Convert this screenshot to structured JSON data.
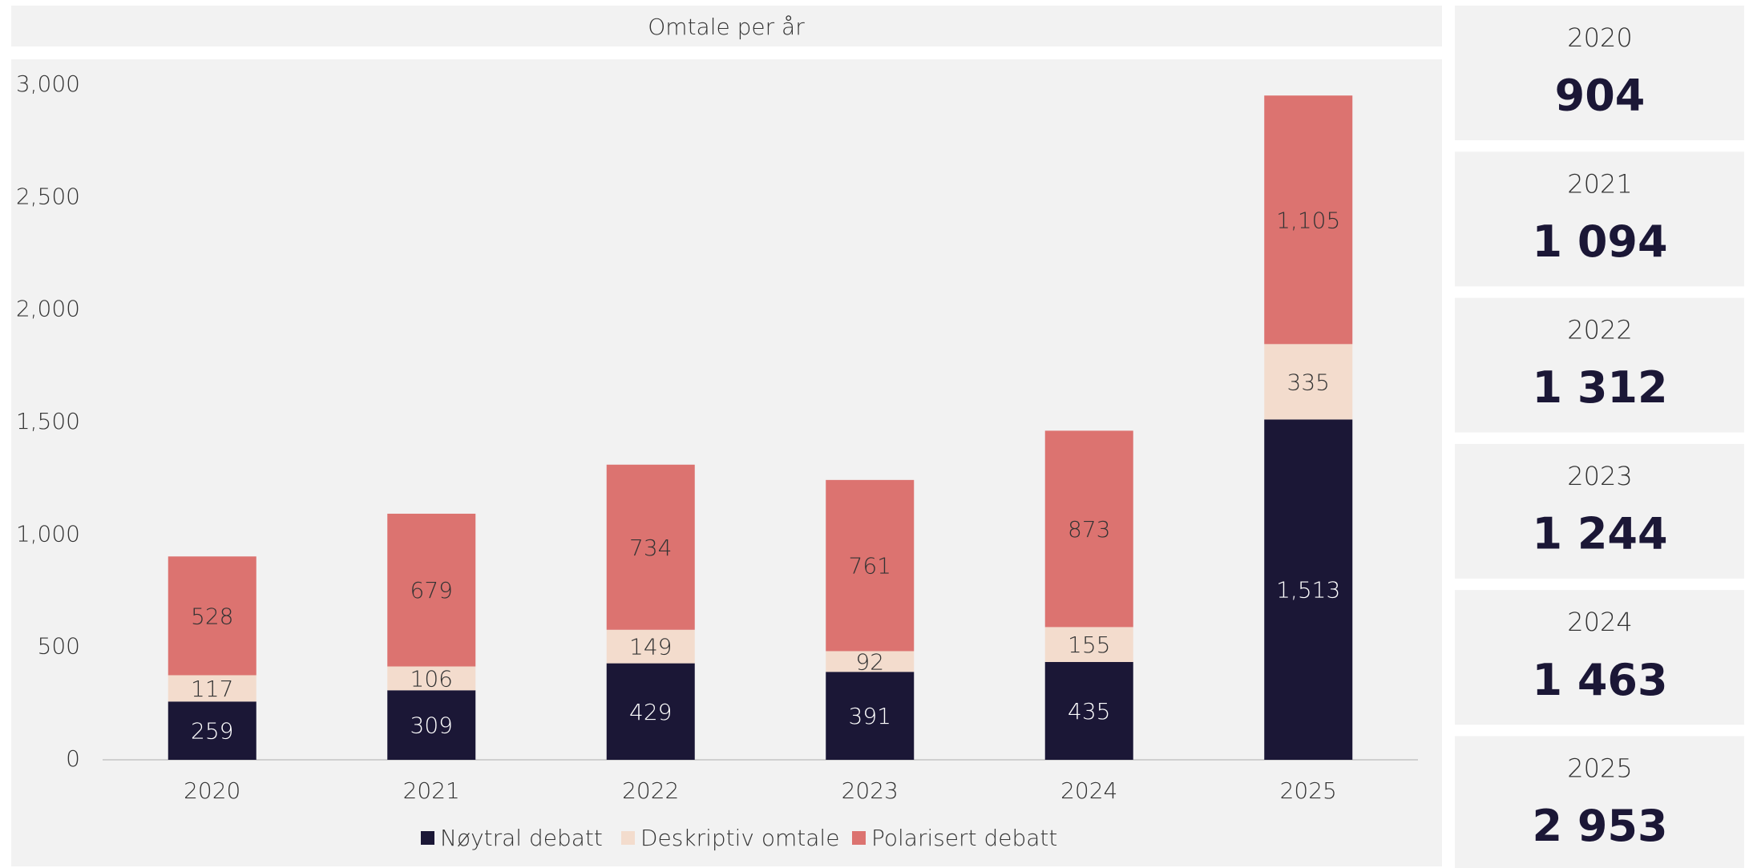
{
  "chart_data": {
    "type": "stacked_bar",
    "title": "Omtale per år",
    "categories": [
      "2020",
      "2021",
      "2022",
      "2023",
      "2024",
      "2025"
    ],
    "series": [
      {
        "name": "Nøytral debatt",
        "color": "#1b1736",
        "values": [
          259,
          309,
          429,
          391,
          435,
          1513
        ],
        "value_labels": [
          "259",
          "309",
          "429",
          "391",
          "435",
          "1,513"
        ]
      },
      {
        "name": "Deskriptiv omtale",
        "color": "#f3dccd",
        "values": [
          117,
          106,
          149,
          92,
          155,
          335
        ]
      },
      {
        "name": "Polarisert debatt",
        "color": "#dc7370",
        "values": [
          528,
          679,
          734,
          761,
          873,
          1105
        ],
        "value_labels": [
          "528",
          "679",
          "734",
          "761",
          "873",
          "1,105"
        ]
      }
    ],
    "ylim": [
      0,
      3000
    ],
    "yticks": [
      0,
      500,
      {
        "value": 1000,
        "label": "1,000"
      },
      {
        "value": 1500,
        "label": "1,500"
      },
      {
        "value": 2000,
        "label": "2,000"
      },
      {
        "value": 2500,
        "label": "2,500"
      },
      {
        "value": 3000,
        "label": "3,000"
      }
    ],
    "grid": false,
    "legend": "bottom"
  },
  "summary": [
    {
      "year": "2020",
      "total": "904"
    },
    {
      "year": "2021",
      "total": "1 094"
    },
    {
      "year": "2022",
      "total": "1 312"
    },
    {
      "year": "2023",
      "total": "1 244"
    },
    {
      "year": "2024",
      "total": "1 463"
    },
    {
      "year": "2025",
      "total": "2 953"
    }
  ]
}
